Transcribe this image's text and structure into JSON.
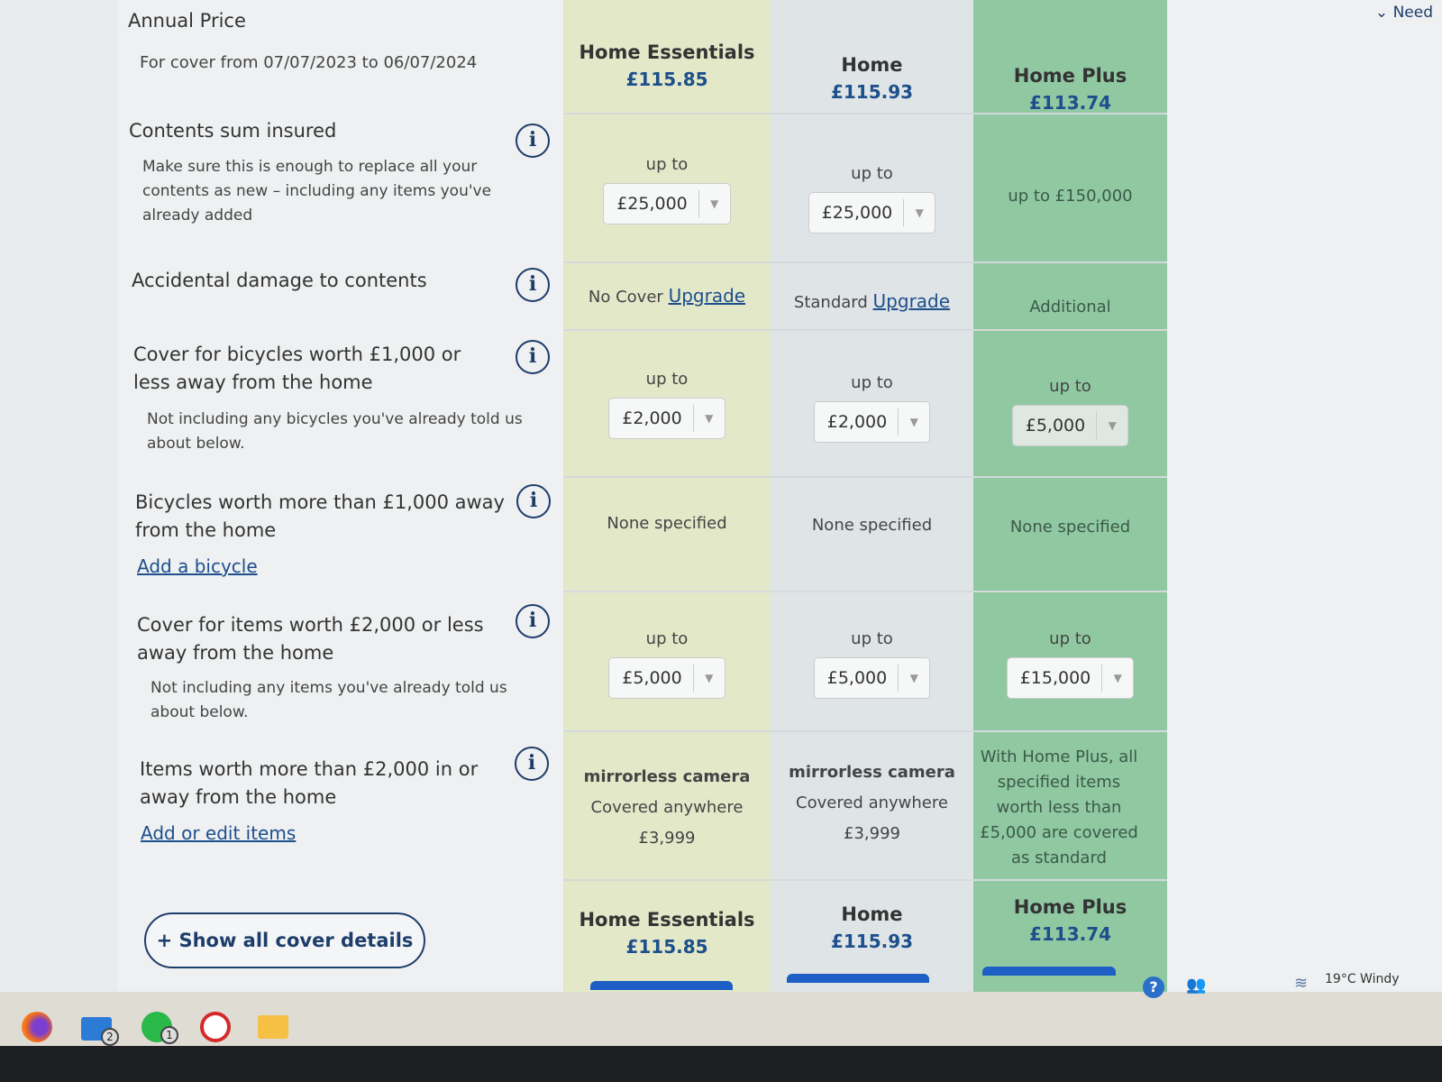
{
  "annual_price": {
    "title": "Annual Price",
    "cover_period": "For cover from 07/07/2023 to 06/07/2024"
  },
  "plans": [
    {
      "name": "Home Essentials",
      "price": "£115.85"
    },
    {
      "name": "Home",
      "price": "£115.93"
    },
    {
      "name": "Home Plus",
      "price": "£113.74"
    }
  ],
  "rows": {
    "contents": {
      "title": "Contents sum insured",
      "desc": "Make sure this is enough to replace all your contents as new – including any items you've already added",
      "up_to": "up to",
      "c1": "£25,000",
      "c2": "£25,000",
      "c3": "up to £150,000"
    },
    "accidental": {
      "title": "Accidental damage to contents",
      "c1": "No Cover",
      "c2": "Standard",
      "c3": "Additional",
      "upgrade": "Upgrade"
    },
    "bicycles": {
      "title": "Cover for bicycles worth £1,000 or less away from the home",
      "desc": "Not including any bicycles you've already told us about below.",
      "up_to": "up to",
      "c1": "£2,000",
      "c2": "£2,000",
      "c3": "£5,000"
    },
    "big_bicycles": {
      "title": "Bicycles worth more than £1,000 away from the home",
      "link": "Add a bicycle",
      "value": "None specified"
    },
    "items": {
      "title": "Cover for items worth £2,000 or less away from the home",
      "desc": "Not including any items you've already told us about below.",
      "up_to": "up to",
      "c1": "£5,000",
      "c2": "£5,000",
      "c3": "£15,000"
    },
    "big_items": {
      "title": "Items worth more than £2,000 in or away from the home",
      "link": "Add or edit items",
      "item": "mirrorless camera",
      "where": "Covered anywhere",
      "amount": "£3,999",
      "c3": "With Home Plus, all specified items worth less than £5,000 are covered as standard"
    }
  },
  "show_all": "+ Show all cover details",
  "top_right": "Need",
  "taskbar": {
    "mail_badge": "2",
    "whatsapp_badge": "1",
    "weather": "19°C",
    "weather_desc": "Windy"
  },
  "colors": {
    "col1": "#e3e8c9",
    "col2": "#dfe4e6",
    "col3": "#90c8a2",
    "accent": "#1d4f8c",
    "bar": "#1d5fc4"
  }
}
